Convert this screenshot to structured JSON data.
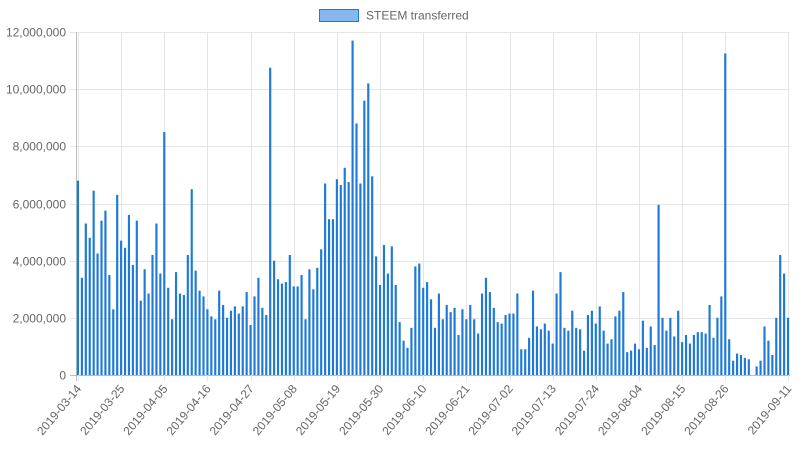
{
  "chart_data": {
    "type": "bar",
    "title": "",
    "xlabel": "",
    "ylabel": "",
    "ylim": [
      0,
      12000000
    ],
    "yticks": [
      0,
      2000000,
      4000000,
      6000000,
      8000000,
      10000000,
      12000000
    ],
    "ytick_labels": [
      "0",
      "2,000,000",
      "4,000,000",
      "6,000,000",
      "8,000,000",
      "10,000,000",
      "12,000,000"
    ],
    "x_tick_labels": [
      "2019-03-14",
      "2019-03-25",
      "2019-04-05",
      "2019-04-16",
      "2019-04-27",
      "2019-05-08",
      "2019-05-19",
      "2019-05-30",
      "2019-06-10",
      "2019-06-21",
      "2019-07-02",
      "2019-07-13",
      "2019-07-24",
      "2019-08-04",
      "2019-08-15",
      "2019-08-26",
      "2019-09-11"
    ],
    "x_tick_index": [
      0,
      11,
      22,
      33,
      44,
      55,
      66,
      77,
      88,
      99,
      110,
      121,
      132,
      143,
      154,
      165,
      181
    ],
    "start_date": "2019-03-14",
    "grid": true,
    "legend_position": "top-center",
    "colors": {
      "bar_fill": "#1e7ad6",
      "legend_fill": "#84b8ee",
      "legend_stroke": "#1e7ad6",
      "grid": "#e5e5e5",
      "axis": "#bbbbbb",
      "text": "#666666"
    },
    "series": [
      {
        "name": "STEEM transferred",
        "values": [
          6800000,
          3400000,
          5300000,
          4800000,
          6450000,
          4250000,
          5400000,
          5750000,
          3500000,
          2300000,
          6300000,
          4700000,
          4450000,
          5600000,
          3850000,
          5400000,
          2600000,
          3700000,
          2850000,
          4200000,
          5300000,
          3550000,
          8500000,
          3050000,
          1950000,
          3600000,
          2850000,
          2800000,
          4200000,
          6500000,
          3650000,
          2950000,
          2750000,
          2300000,
          2050000,
          1950000,
          2950000,
          2450000,
          2000000,
          2250000,
          2400000,
          2150000,
          2400000,
          2900000,
          1750000,
          2750000,
          3400000,
          2350000,
          2100000,
          10750000,
          4000000,
          3350000,
          3200000,
          3250000,
          4200000,
          3100000,
          3100000,
          3500000,
          1950000,
          3700000,
          3000000,
          3750000,
          4400000,
          6700000,
          5450000,
          5450000,
          6850000,
          6650000,
          7250000,
          6750000,
          11700000,
          8800000,
          6700000,
          9600000,
          10200000,
          6950000,
          4150000,
          3150000,
          4550000,
          3550000,
          4500000,
          3150000,
          1850000,
          1200000,
          950000,
          1650000,
          3800000,
          3900000,
          3050000,
          3250000,
          2650000,
          1650000,
          2850000,
          1950000,
          2450000,
          2200000,
          2350000,
          1400000,
          2300000,
          1950000,
          2450000,
          1950000,
          1450000,
          2850000,
          3400000,
          2900000,
          2350000,
          1850000,
          1800000,
          2100000,
          2150000,
          2150000,
          2850000,
          900000,
          900000,
          1300000,
          2950000,
          1700000,
          1600000,
          1800000,
          1550000,
          1100000,
          2850000,
          3600000,
          1650000,
          1550000,
          2250000,
          1650000,
          1600000,
          850000,
          2100000,
          2250000,
          1800000,
          2400000,
          1550000,
          1100000,
          1250000,
          2050000,
          2250000,
          2900000,
          800000,
          850000,
          1100000,
          900000,
          1900000,
          950000,
          1700000,
          1050000,
          5950000,
          2000000,
          1550000,
          2000000,
          1350000,
          2250000,
          1150000,
          1400000,
          1100000,
          1400000,
          1500000,
          1500000,
          1450000,
          2450000,
          1300000,
          2000000,
          2750000,
          11250000,
          1250000,
          500000,
          750000,
          700000,
          600000,
          550000,
          0,
          300000,
          500000,
          1700000,
          1200000,
          700000,
          2000000,
          4200000,
          3550000,
          2000000
        ]
      }
    ]
  }
}
